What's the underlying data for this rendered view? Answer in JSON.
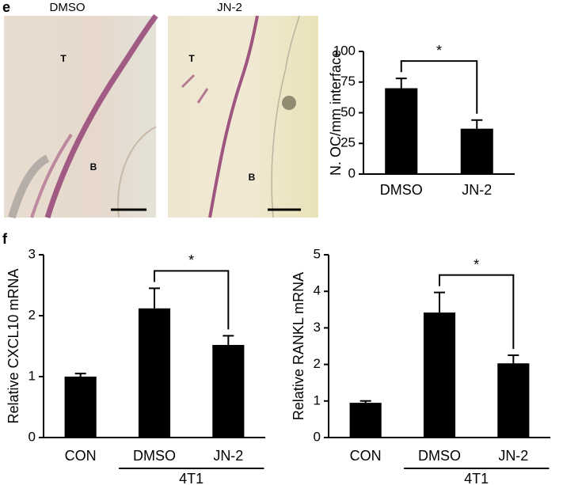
{
  "panel_labels": [
    "e",
    "f"
  ],
  "images": [
    {
      "title": "DMSO",
      "labels": [
        "T",
        "B"
      ]
    },
    {
      "title": "JN-2",
      "labels": [
        "T",
        "B"
      ]
    }
  ],
  "chart_data": [
    {
      "type": "bar",
      "categories": [
        "DMSO",
        "JN-2"
      ],
      "values": [
        70,
        37
      ],
      "errors": [
        8,
        7
      ],
      "color": "#000000",
      "y_label": "N. OC/mm interface",
      "ylim": [
        0,
        100
      ],
      "yticks": [
        0,
        25,
        50,
        75,
        100
      ],
      "significance": "*"
    },
    {
      "type": "bar",
      "categories": [
        "CON",
        "DMSO",
        "JN-2"
      ],
      "values": [
        1.0,
        2.12,
        1.52
      ],
      "errors": [
        0.05,
        0.33,
        0.15
      ],
      "color": "#000000",
      "y_label": "Relative CXCL10 mRNA",
      "ylim": [
        0,
        3
      ],
      "yticks": [
        0,
        1,
        2,
        3
      ],
      "significance": "*",
      "group_label": "4T1"
    },
    {
      "type": "bar",
      "categories": [
        "CON",
        "DMSO",
        "JN-2"
      ],
      "values": [
        0.95,
        3.42,
        2.03
      ],
      "errors": [
        0.05,
        0.55,
        0.22
      ],
      "color": "#000000",
      "y_label": "Relative RANKL mRNA",
      "ylim": [
        0,
        5
      ],
      "yticks": [
        0,
        1,
        2,
        3,
        4,
        5
      ],
      "significance": "*",
      "group_label": "4T1"
    }
  ]
}
